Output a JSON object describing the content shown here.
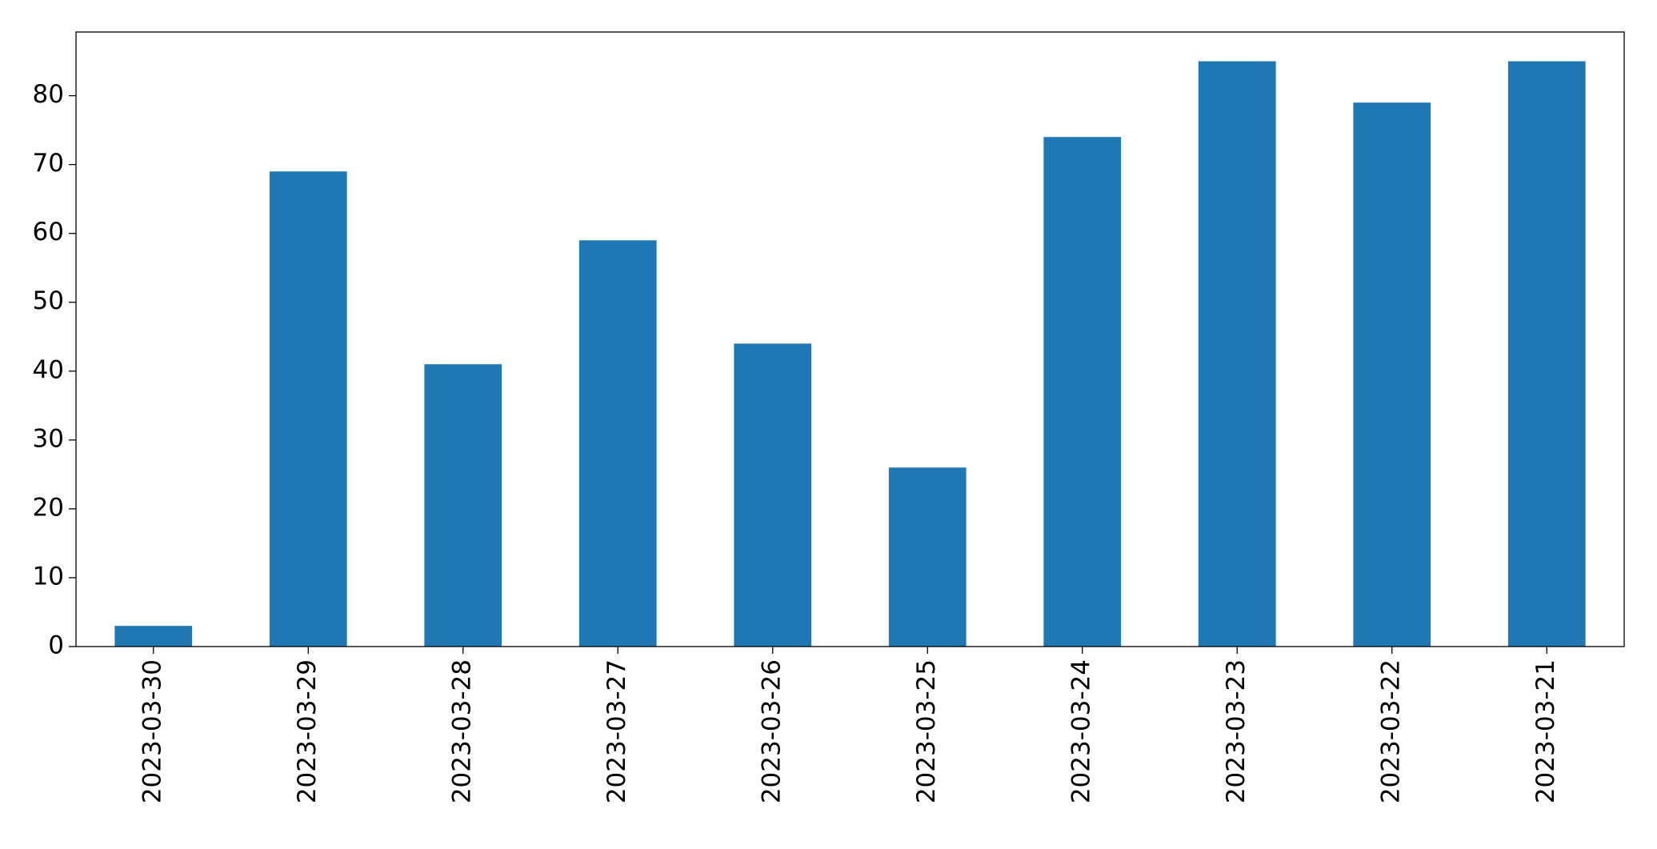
{
  "chart_data": {
    "type": "bar",
    "categories": [
      "2023-03-30",
      "2023-03-29",
      "2023-03-28",
      "2023-03-27",
      "2023-03-26",
      "2023-03-25",
      "2023-03-24",
      "2023-03-23",
      "2023-03-22",
      "2023-03-21"
    ],
    "values": [
      3,
      69,
      41,
      59,
      44,
      26,
      74,
      85,
      79,
      85
    ],
    "color": "#1f77b4",
    "ylim": [
      0,
      89.25
    ],
    "yticks": [
      0,
      10,
      20,
      30,
      40,
      50,
      60,
      70,
      80
    ],
    "grid": false
  }
}
